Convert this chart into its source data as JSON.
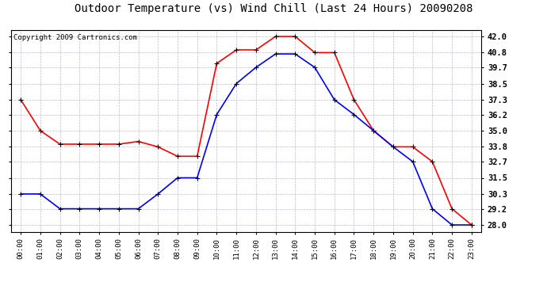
{
  "title": "Outdoor Temperature (vs) Wind Chill (Last 24 Hours) 20090208",
  "copyright": "Copyright 2009 Cartronics.com",
  "hours": [
    "00:00",
    "01:00",
    "02:00",
    "03:00",
    "04:00",
    "05:00",
    "06:00",
    "07:00",
    "08:00",
    "09:00",
    "10:00",
    "11:00",
    "12:00",
    "13:00",
    "14:00",
    "15:00",
    "16:00",
    "17:00",
    "18:00",
    "19:00",
    "20:00",
    "21:00",
    "22:00",
    "23:00"
  ],
  "temp": [
    30.3,
    30.3,
    29.2,
    29.2,
    29.2,
    29.2,
    29.2,
    30.3,
    31.5,
    31.5,
    36.2,
    38.5,
    39.7,
    40.7,
    40.7,
    39.7,
    37.3,
    36.2,
    35.0,
    33.8,
    32.7,
    29.2,
    28.0,
    28.0
  ],
  "windchill": [
    37.3,
    35.0,
    34.0,
    34.0,
    34.0,
    34.0,
    34.2,
    33.8,
    33.1,
    33.1,
    40.0,
    41.0,
    41.0,
    42.0,
    42.0,
    40.8,
    40.8,
    37.3,
    35.0,
    33.8,
    33.8,
    32.7,
    29.2,
    28.0
  ],
  "yticks": [
    28.0,
    29.2,
    30.3,
    31.5,
    32.7,
    33.8,
    35.0,
    36.2,
    37.3,
    38.5,
    39.7,
    40.8,
    42.0
  ],
  "ymin": 27.5,
  "ymax": 42.5,
  "temp_color": "blue",
  "windchill_color": "red",
  "bg_color": "#ffffff",
  "plot_bg_color": "#ffffff",
  "grid_color": "#aaaacc",
  "title_fontsize": 10,
  "copyright_fontsize": 6.5,
  "xtick_fontsize": 6.5,
  "ytick_fontsize": 7.5
}
